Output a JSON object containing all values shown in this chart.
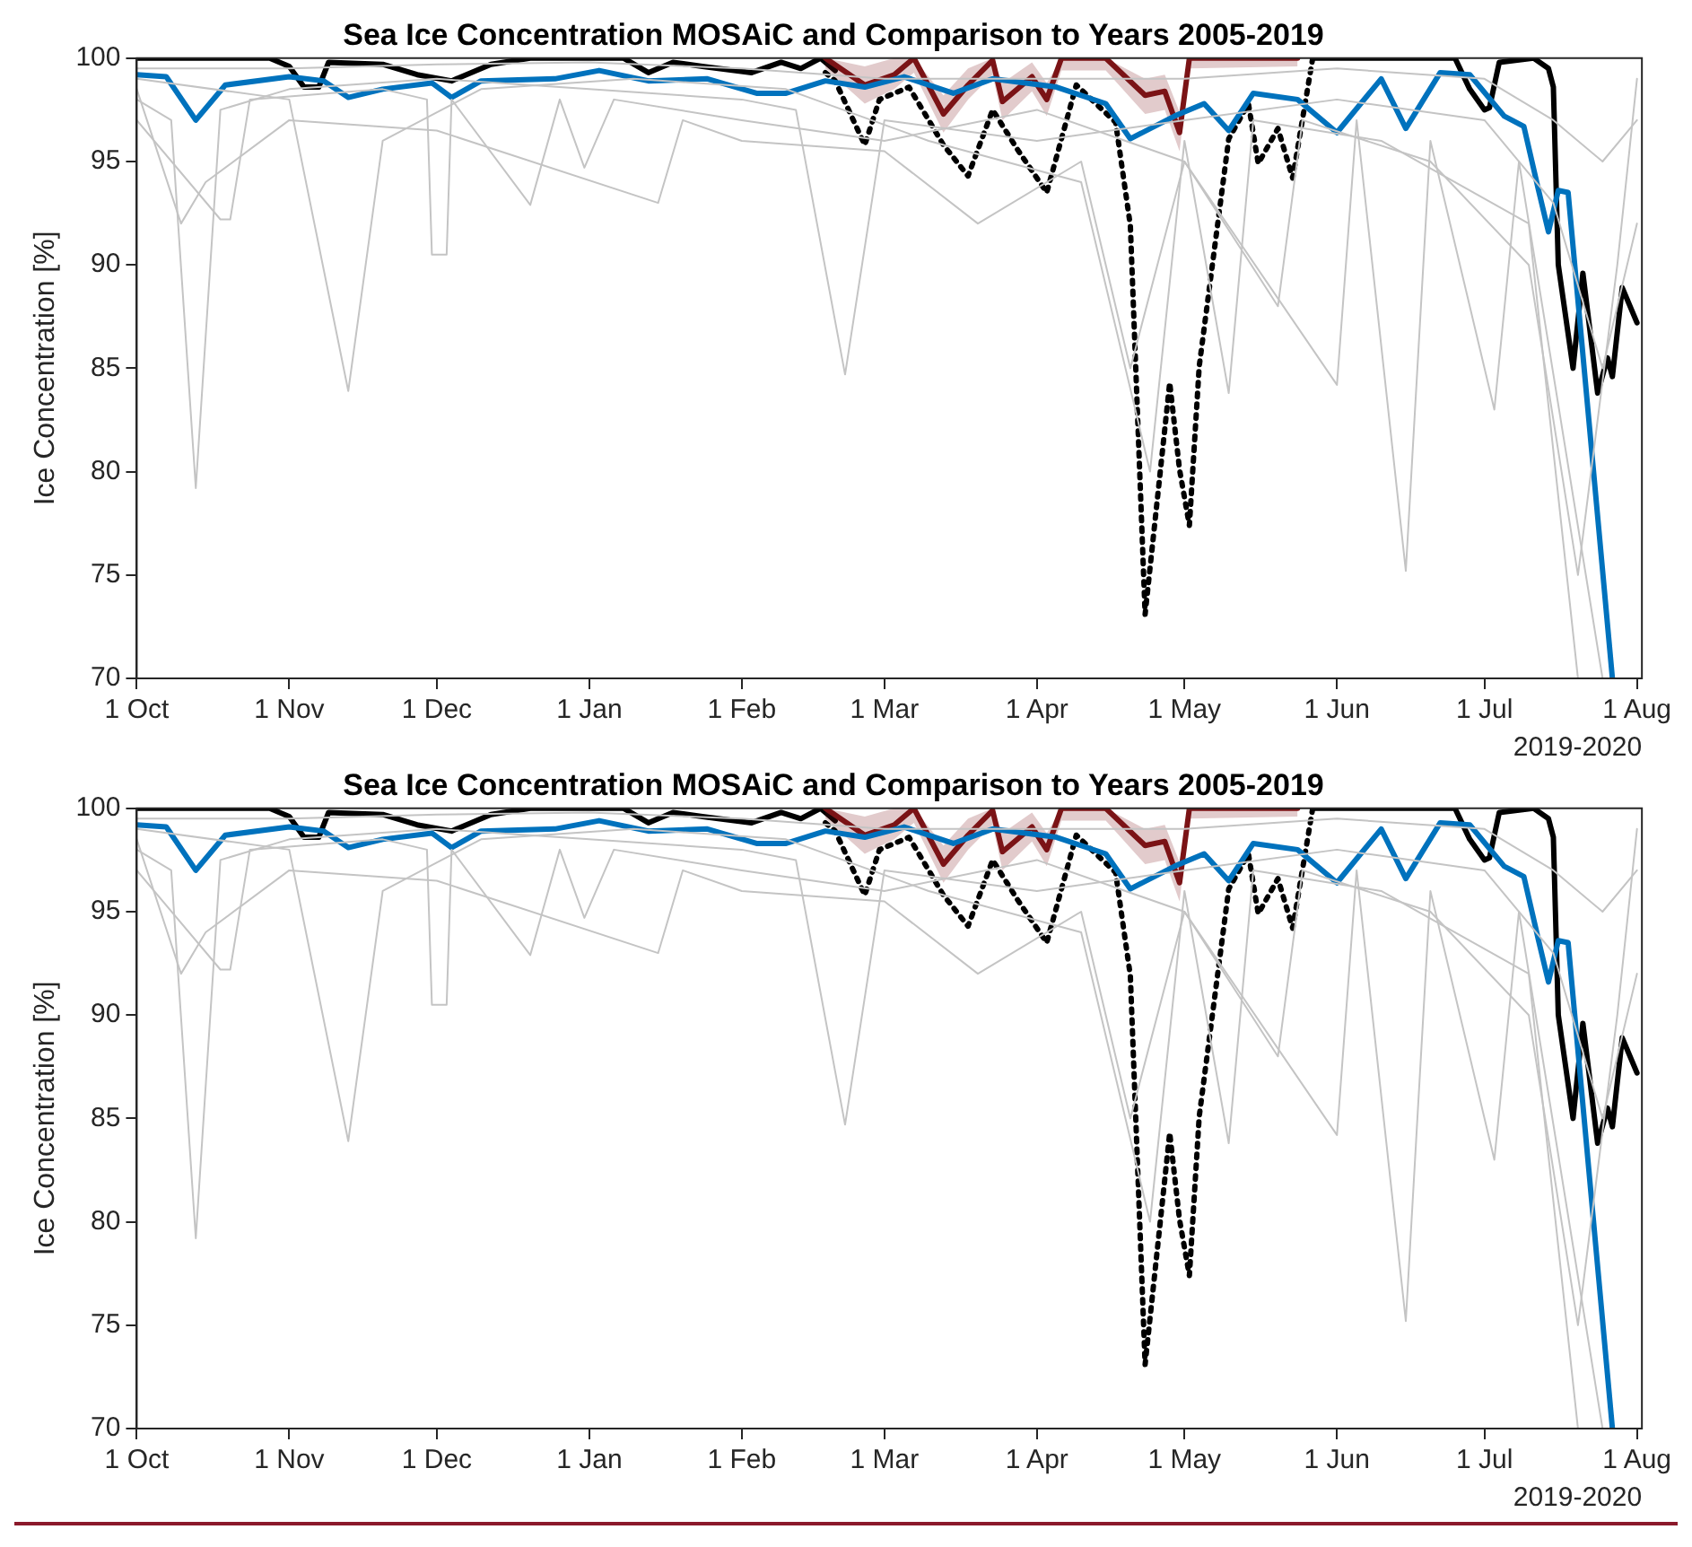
{
  "chart_data": [
    {
      "type": "line",
      "title": "Sea Ice Concentration MOSAiC and Comparison to Years 2005-2019",
      "xlabel": "2019-2020",
      "ylabel": "Ice Concentration [%]",
      "xlim": [
        "2019-10-01",
        "2020-08-02"
      ],
      "ylim": [
        70,
        100
      ],
      "yticks": [
        70,
        75,
        80,
        85,
        90,
        95,
        100
      ],
      "xticks": [
        {
          "value": "2019-10-01",
          "label": "1 Oct"
        },
        {
          "value": "2019-11-01",
          "label": "1 Nov"
        },
        {
          "value": "2019-12-01",
          "label": "1 Dec"
        },
        {
          "value": "2020-01-01",
          "label": "1 Jan"
        },
        {
          "value": "2020-02-01",
          "label": "1 Feb"
        },
        {
          "value": "2020-03-01",
          "label": "1 Mar"
        },
        {
          "value": "2020-04-01",
          "label": "1 Apr"
        },
        {
          "value": "2020-05-01",
          "label": "1 May"
        },
        {
          "value": "2020-06-01",
          "label": "1 Jun"
        },
        {
          "value": "2020-07-01",
          "label": "1 Jul"
        },
        {
          "value": "2020-08-01",
          "label": "1 Aug"
        }
      ],
      "series": [
        {
          "color": "#c4c4c4",
          "x": [
            "2019-10-01",
            "2019-10-08",
            "2019-10-13",
            "2019-10-18",
            "2019-11-01",
            "2019-12-01",
            "2020-01-01",
            "2020-02-01",
            "2020-02-12",
            "2020-02-22",
            "2020-03-01",
            "2020-04-01",
            "2020-05-01",
            "2020-06-01",
            "2020-07-01",
            "2020-07-15",
            "2020-07-25",
            "2020-08-01"
          ],
          "values": [
            98,
            97,
            79.2,
            97.5,
            98.5,
            99,
            98.5,
            98,
            97.5,
            84.7,
            97,
            96,
            97,
            98,
            97,
            93,
            85,
            92
          ]
        },
        {
          "color": "#c4c4c4",
          "x": [
            "2019-10-01",
            "2019-11-01",
            "2019-11-13",
            "2019-11-20",
            "2019-12-10",
            "2020-01-10",
            "2020-02-10",
            "2020-03-10",
            "2020-04-10",
            "2020-04-24",
            "2020-05-01",
            "2020-05-10",
            "2020-05-15",
            "2020-06-10",
            "2020-07-10",
            "2020-07-20"
          ],
          "values": [
            99,
            98,
            83.9,
            96,
            98.5,
            99,
            98.5,
            96,
            94,
            80,
            96,
            83.8,
            97,
            96,
            92,
            70
          ]
        },
        {
          "color": "#c4c4c4",
          "x": [
            "2019-10-01",
            "2019-10-18",
            "2019-10-20",
            "2019-10-24",
            "2019-11-20",
            "2019-11-29",
            "2019-11-30",
            "2019-12-03",
            "2019-12-04",
            "2019-12-20",
            "2019-12-26",
            "2019-12-31",
            "2020-01-06",
            "2020-02-01",
            "2020-03-01",
            "2020-04-01",
            "2020-05-01",
            "2020-06-01",
            "2020-06-05",
            "2020-06-15",
            "2020-06-20",
            "2020-07-03",
            "2020-07-08",
            "2020-07-25"
          ],
          "values": [
            97,
            92.2,
            92.2,
            98,
            98.5,
            98,
            90.5,
            90.5,
            98,
            92.9,
            98,
            94.7,
            98,
            97,
            96,
            97.5,
            95,
            84.2,
            97,
            75.2,
            96,
            83,
            95,
            70
          ]
        },
        {
          "color": "#c4c4c4",
          "x": [
            "2019-10-01",
            "2019-10-10",
            "2019-10-15",
            "2019-11-01",
            "2019-12-01",
            "2020-01-15",
            "2020-01-20",
            "2020-02-01",
            "2020-03-01",
            "2020-03-20",
            "2020-04-10",
            "2020-04-20",
            "2020-05-01",
            "2020-05-20",
            "2020-05-25",
            "2020-06-20",
            "2020-07-10",
            "2020-07-20",
            "2020-07-28",
            "2020-08-01"
          ],
          "values": [
            98.5,
            92,
            94,
            97,
            96.5,
            93,
            97,
            96,
            95.5,
            92,
            95,
            85,
            95,
            88,
            97,
            95,
            90,
            75,
            90,
            99
          ]
        },
        {
          "color": "#c4c4c4",
          "x": [
            "2019-10-01",
            "2019-11-01",
            "2019-12-01",
            "2020-01-01",
            "2020-02-01",
            "2020-03-01",
            "2020-04-01",
            "2020-05-01",
            "2020-06-01",
            "2020-07-01",
            "2020-07-15",
            "2020-07-25",
            "2020-08-01"
          ],
          "values": [
            99.5,
            99.5,
            99.7,
            99.8,
            99.5,
            99,
            99,
            99,
            99.5,
            99,
            97,
            95,
            97
          ]
        },
        {
          "color": "#0072bd",
          "x": [
            "2019-10-01",
            "2019-10-07",
            "2019-10-13",
            "2019-10-19",
            "2019-11-01",
            "2019-11-08",
            "2019-11-13",
            "2019-11-20",
            "2019-11-30",
            "2019-12-04",
            "2019-12-10",
            "2019-12-25",
            "2020-01-03",
            "2020-01-13",
            "2020-01-25",
            "2020-02-04",
            "2020-02-10",
            "2020-02-18",
            "2020-02-26",
            "2020-03-05",
            "2020-03-15",
            "2020-03-23",
            "2020-04-05",
            "2020-04-15",
            "2020-04-20",
            "2020-04-29",
            "2020-05-05",
            "2020-05-10",
            "2020-05-15",
            "2020-05-24",
            "2020-06-01",
            "2020-06-10",
            "2020-06-15",
            "2020-06-22",
            "2020-06-28",
            "2020-07-05",
            "2020-07-09",
            "2020-07-12",
            "2020-07-14",
            "2020-07-16",
            "2020-07-18",
            "2020-07-27"
          ],
          "values": [
            99.2,
            99.1,
            97,
            98.7,
            99.1,
            98.9,
            98.1,
            98.5,
            98.8,
            98.1,
            98.9,
            99,
            99.4,
            98.9,
            99,
            98.3,
            98.3,
            98.9,
            98.6,
            99.1,
            98.3,
            99,
            98.6,
            97.8,
            96.1,
            97.2,
            97.8,
            96.5,
            98.3,
            98,
            96.4,
            99,
            96.6,
            99.3,
            99.2,
            97.2,
            96.7,
            93.6,
            91.6,
            93.6,
            93.5,
            70
          ]
        },
        {
          "color": "#7b1416",
          "x": [
            "2020-02-18",
            "2020-02-26",
            "2020-03-03",
            "2020-03-07",
            "2020-03-13",
            "2020-03-18",
            "2020-03-23",
            "2020-03-25",
            "2020-03-31",
            "2020-04-03",
            "2020-04-06",
            "2020-04-15",
            "2020-04-23",
            "2020-04-27",
            "2020-04-30",
            "2020-05-02",
            "2020-05-24"
          ],
          "values": [
            100,
            98.7,
            99.2,
            100,
            97.3,
            98.7,
            99.9,
            97.9,
            99.1,
            98,
            100,
            100,
            98.2,
            98.4,
            96.4,
            100,
            100
          ],
          "lower": [
            99.5,
            97.8,
            98.5,
            99.3,
            96.4,
            98,
            99.2,
            97,
            98.4,
            97.2,
            99.4,
            99.4,
            97.3,
            97.5,
            95.5,
            99.5,
            99.6
          ],
          "upper": [
            100,
            99.6,
            100,
            100,
            98.2,
            99.5,
            100,
            98.8,
            99.8,
            98.8,
            100,
            100,
            99,
            99.2,
            97.4,
            100,
            100
          ]
        },
        {
          "color": "#000000",
          "x": [
            "2019-10-01",
            "2019-10-28",
            "2019-11-01",
            "2019-11-04",
            "2019-11-07",
            "2019-11-09",
            "2019-11-20",
            "2019-11-27",
            "2019-12-04",
            "2019-12-12",
            "2019-12-20",
            "2020-01-08",
            "2020-01-13",
            "2020-01-18",
            "2020-01-24",
            "2020-02-03",
            "2020-02-09",
            "2020-02-13",
            "2020-02-17",
            "2020-02-20",
            "2020-04-01",
            "2020-05-27",
            "2020-06-25",
            "2020-06-28",
            "2020-07-01",
            "2020-07-02",
            "2020-07-04",
            "2020-07-11",
            "2020-07-14",
            "2020-07-15",
            "2020-07-16",
            "2020-07-19",
            "2020-07-21",
            "2020-07-24",
            "2020-07-26",
            "2020-07-27",
            "2020-07-29",
            "2020-08-01"
          ],
          "values": [
            100,
            100,
            99.6,
            98.6,
            98.6,
            99.8,
            99.7,
            99.2,
            98.9,
            99.7,
            100,
            100,
            99.3,
            99.8,
            99.6,
            99.3,
            99.8,
            99.5,
            100,
            99.4,
            null,
            100,
            100,
            98.5,
            97.5,
            97.6,
            99.8,
            100,
            99.5,
            98.6,
            90,
            85,
            89.6,
            83.8,
            85.5,
            84.6,
            88.9,
            87.2
          ]
        },
        {
          "color": "#000000",
          "line_style": "dotted",
          "x": [
            "2020-02-18",
            "2020-02-20",
            "2020-02-26",
            "2020-02-29",
            "2020-03-06",
            "2020-03-13",
            "2020-03-18",
            "2020-03-23",
            "2020-03-28",
            "2020-04-03",
            "2020-04-09",
            "2020-04-17",
            "2020-04-20",
            "2020-04-23",
            "2020-04-28",
            "2020-04-30",
            "2020-05-02",
            "2020-05-04",
            "2020-05-10",
            "2020-05-14",
            "2020-05-16",
            "2020-05-20",
            "2020-05-23",
            "2020-05-27"
          ],
          "values": [
            99.3,
            98.9,
            95.8,
            98,
            98.6,
            95.8,
            94.3,
            97.5,
            95.6,
            93.5,
            98.7,
            96.9,
            91.9,
            73.1,
            84.3,
            80.1,
            77.4,
            85.1,
            96.1,
            97.8,
            94.9,
            96.6,
            94.2,
            99.9
          ]
        }
      ]
    },
    {
      "type": "line",
      "title": "Sea Ice Concentration MOSAiC and Comparison to Years 2005-2019",
      "xlabel": "2019-2020",
      "ylabel": "Ice Concentration [%]",
      "xlim": [
        "2019-10-01",
        "2020-08-02"
      ],
      "ylim": [
        70,
        100
      ],
      "yticks": [
        70,
        75,
        80,
        85,
        90,
        95,
        100
      ],
      "xticks": [
        {
          "value": "2019-10-01",
          "label": "1 Oct"
        },
        {
          "value": "2019-11-01",
          "label": "1 Nov"
        },
        {
          "value": "2019-12-01",
          "label": "1 Dec"
        },
        {
          "value": "2020-01-01",
          "label": "1 Jan"
        },
        {
          "value": "2020-02-01",
          "label": "1 Feb"
        },
        {
          "value": "2020-03-01",
          "label": "1 Mar"
        },
        {
          "value": "2020-04-01",
          "label": "1 Apr"
        },
        {
          "value": "2020-05-01",
          "label": "1 May"
        },
        {
          "value": "2020-06-01",
          "label": "1 Jun"
        },
        {
          "value": "2020-07-01",
          "label": "1 Jul"
        },
        {
          "value": "2020-08-01",
          "label": "1 Aug"
        }
      ],
      "series": [
        {
          "color": "#c4c4c4",
          "x": [
            "2019-10-01",
            "2019-10-08",
            "2019-10-13",
            "2019-10-18",
            "2019-11-01",
            "2019-12-01",
            "2020-01-01",
            "2020-02-01",
            "2020-02-12",
            "2020-02-22",
            "2020-03-01",
            "2020-04-01",
            "2020-05-01",
            "2020-06-01",
            "2020-07-01",
            "2020-07-15",
            "2020-07-25",
            "2020-08-01"
          ],
          "values": [
            98,
            97,
            79.2,
            97.5,
            98.5,
            99,
            98.5,
            98,
            97.5,
            84.7,
            97,
            96,
            97,
            98,
            97,
            93,
            85,
            92
          ]
        },
        {
          "color": "#c4c4c4",
          "x": [
            "2019-10-01",
            "2019-11-01",
            "2019-11-13",
            "2019-11-20",
            "2019-12-10",
            "2020-01-10",
            "2020-02-10",
            "2020-03-10",
            "2020-04-10",
            "2020-04-24",
            "2020-05-01",
            "2020-05-10",
            "2020-05-15",
            "2020-06-10",
            "2020-07-10",
            "2020-07-20"
          ],
          "values": [
            99,
            98,
            83.9,
            96,
            98.5,
            99,
            98.5,
            96,
            94,
            80,
            96,
            83.8,
            97,
            96,
            92,
            70
          ]
        },
        {
          "color": "#c4c4c4",
          "x": [
            "2019-10-01",
            "2019-10-18",
            "2019-10-20",
            "2019-10-24",
            "2019-11-20",
            "2019-11-29",
            "2019-11-30",
            "2019-12-03",
            "2019-12-04",
            "2019-12-20",
            "2019-12-26",
            "2019-12-31",
            "2020-01-06",
            "2020-02-01",
            "2020-03-01",
            "2020-04-01",
            "2020-05-01",
            "2020-06-01",
            "2020-06-05",
            "2020-06-15",
            "2020-06-20",
            "2020-07-03",
            "2020-07-08",
            "2020-07-25"
          ],
          "values": [
            97,
            92.2,
            92.2,
            98,
            98.5,
            98,
            90.5,
            90.5,
            98,
            92.9,
            98,
            94.7,
            98,
            97,
            96,
            97.5,
            95,
            84.2,
            97,
            75.2,
            96,
            83,
            95,
            70
          ]
        },
        {
          "color": "#c4c4c4",
          "x": [
            "2019-10-01",
            "2019-10-10",
            "2019-10-15",
            "2019-11-01",
            "2019-12-01",
            "2020-01-15",
            "2020-01-20",
            "2020-02-01",
            "2020-03-01",
            "2020-03-20",
            "2020-04-10",
            "2020-04-20",
            "2020-05-01",
            "2020-05-20",
            "2020-05-25",
            "2020-06-20",
            "2020-07-10",
            "2020-07-20",
            "2020-07-28",
            "2020-08-01"
          ],
          "values": [
            98.5,
            92,
            94,
            97,
            96.5,
            93,
            97,
            96,
            95.5,
            92,
            95,
            85,
            95,
            88,
            97,
            95,
            90,
            75,
            90,
            99
          ]
        },
        {
          "color": "#c4c4c4",
          "x": [
            "2019-10-01",
            "2019-11-01",
            "2019-12-01",
            "2020-01-01",
            "2020-02-01",
            "2020-03-01",
            "2020-04-01",
            "2020-05-01",
            "2020-06-01",
            "2020-07-01",
            "2020-07-15",
            "2020-07-25",
            "2020-08-01"
          ],
          "values": [
            99.5,
            99.5,
            99.7,
            99.8,
            99.5,
            99,
            99,
            99,
            99.5,
            99,
            97,
            95,
            97
          ]
        },
        {
          "color": "#0072bd",
          "x": [
            "2019-10-01",
            "2019-10-07",
            "2019-10-13",
            "2019-10-19",
            "2019-11-01",
            "2019-11-08",
            "2019-11-13",
            "2019-11-20",
            "2019-11-30",
            "2019-12-04",
            "2019-12-10",
            "2019-12-25",
            "2020-01-03",
            "2020-01-13",
            "2020-01-25",
            "2020-02-04",
            "2020-02-10",
            "2020-02-18",
            "2020-02-26",
            "2020-03-05",
            "2020-03-15",
            "2020-03-23",
            "2020-04-05",
            "2020-04-15",
            "2020-04-20",
            "2020-04-29",
            "2020-05-05",
            "2020-05-10",
            "2020-05-15",
            "2020-05-24",
            "2020-06-01",
            "2020-06-10",
            "2020-06-15",
            "2020-06-22",
            "2020-06-28",
            "2020-07-05",
            "2020-07-09",
            "2020-07-12",
            "2020-07-14",
            "2020-07-16",
            "2020-07-18",
            "2020-07-27"
          ],
          "values": [
            99.2,
            99.1,
            97,
            98.7,
            99.1,
            98.9,
            98.1,
            98.5,
            98.8,
            98.1,
            98.9,
            99,
            99.4,
            98.9,
            99,
            98.3,
            98.3,
            98.9,
            98.6,
            99.1,
            98.3,
            99,
            98.6,
            97.8,
            96.1,
            97.2,
            97.8,
            96.5,
            98.3,
            98,
            96.4,
            99,
            96.6,
            99.3,
            99.2,
            97.2,
            96.7,
            93.6,
            91.6,
            93.6,
            93.5,
            70
          ]
        },
        {
          "color": "#7b1416",
          "x": [
            "2020-02-18",
            "2020-02-26",
            "2020-03-03",
            "2020-03-07",
            "2020-03-13",
            "2020-03-18",
            "2020-03-23",
            "2020-03-25",
            "2020-03-31",
            "2020-04-03",
            "2020-04-06",
            "2020-04-15",
            "2020-04-23",
            "2020-04-27",
            "2020-04-30",
            "2020-05-02",
            "2020-05-24"
          ],
          "values": [
            100,
            98.7,
            99.2,
            100,
            97.3,
            98.7,
            99.9,
            97.9,
            99.1,
            98,
            100,
            100,
            98.2,
            98.4,
            96.4,
            100,
            100
          ],
          "lower": [
            99.5,
            97.8,
            98.5,
            99.3,
            96.4,
            98,
            99.2,
            97,
            98.4,
            97.2,
            99.4,
            99.4,
            97.3,
            97.5,
            95.5,
            99.5,
            99.6
          ],
          "upper": [
            100,
            99.6,
            100,
            100,
            98.2,
            99.5,
            100,
            98.8,
            99.8,
            98.8,
            100,
            100,
            99,
            99.2,
            97.4,
            100,
            100
          ]
        },
        {
          "color": "#000000",
          "x": [
            "2019-10-01",
            "2019-10-28",
            "2019-11-01",
            "2019-11-04",
            "2019-11-07",
            "2019-11-09",
            "2019-11-20",
            "2019-11-27",
            "2019-12-04",
            "2019-12-12",
            "2019-12-20",
            "2020-01-08",
            "2020-01-13",
            "2020-01-18",
            "2020-01-24",
            "2020-02-03",
            "2020-02-09",
            "2020-02-13",
            "2020-02-17",
            "2020-02-20",
            "2020-04-01",
            "2020-05-27",
            "2020-06-25",
            "2020-06-28",
            "2020-07-01",
            "2020-07-02",
            "2020-07-04",
            "2020-07-11",
            "2020-07-14",
            "2020-07-15",
            "2020-07-16",
            "2020-07-19",
            "2020-07-21",
            "2020-07-24",
            "2020-07-26",
            "2020-07-27",
            "2020-07-29",
            "2020-08-01"
          ],
          "values": [
            100,
            100,
            99.6,
            98.6,
            98.6,
            99.8,
            99.7,
            99.2,
            98.9,
            99.7,
            100,
            100,
            99.3,
            99.8,
            99.6,
            99.3,
            99.8,
            99.5,
            100,
            99.4,
            null,
            100,
            100,
            98.5,
            97.5,
            97.6,
            99.8,
            100,
            99.5,
            98.6,
            90,
            85,
            89.6,
            83.8,
            85.5,
            84.6,
            88.9,
            87.2
          ]
        },
        {
          "color": "#000000",
          "line_style": "dotted",
          "x": [
            "2020-02-18",
            "2020-02-20",
            "2020-02-26",
            "2020-02-29",
            "2020-03-06",
            "2020-03-13",
            "2020-03-18",
            "2020-03-23",
            "2020-03-28",
            "2020-04-03",
            "2020-04-09",
            "2020-04-17",
            "2020-04-20",
            "2020-04-23",
            "2020-04-28",
            "2020-04-30",
            "2020-05-02",
            "2020-05-04",
            "2020-05-10",
            "2020-05-14",
            "2020-05-16",
            "2020-05-20",
            "2020-05-23",
            "2020-05-27"
          ],
          "values": [
            99.3,
            98.9,
            95.8,
            98,
            98.6,
            95.8,
            94.3,
            97.5,
            95.6,
            93.5,
            98.7,
            96.9,
            91.9,
            73.1,
            84.3,
            80.1,
            77.4,
            85.1,
            96.1,
            97.8,
            94.9,
            96.6,
            94.2,
            99.9
          ]
        }
      ]
    }
  ]
}
